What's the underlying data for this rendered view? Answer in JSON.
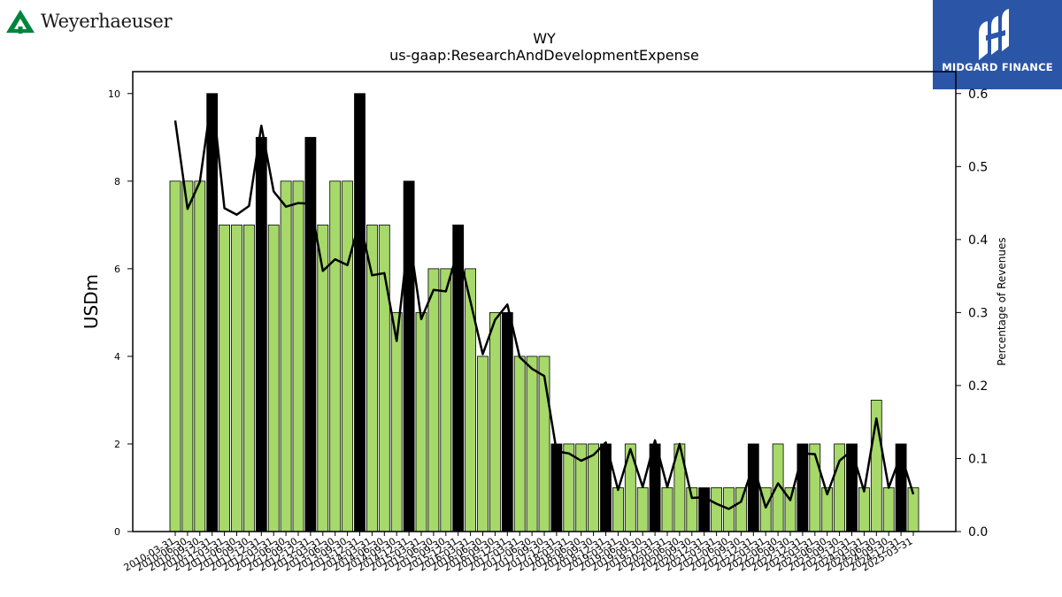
{
  "brand": {
    "company_logo_text": "Weyerhaeuser",
    "publisher_logo_text": "MIDGARD FINANCE"
  },
  "colors": {
    "bar_fill": "#a6d96a",
    "bar_highlight": "#000000",
    "line": "#000000",
    "publisher_bg": "#2b56a8",
    "company_green": "#00843d"
  },
  "chart_data": {
    "type": "bar",
    "title": "WY",
    "subtitle": "us-gaap:ResearchAndDevelopmentExpense",
    "ylabel": "USDm",
    "y2label": "Percentage of Revenues",
    "ylim": [
      0,
      10.5
    ],
    "y2lim": [
      0,
      0.63
    ],
    "yticks": [
      0,
      2,
      4,
      6,
      8,
      10
    ],
    "y2ticks": [
      "0.0",
      "0.1",
      "0.2",
      "0.3",
      "0.4",
      "0.5",
      "0.6"
    ],
    "grid": false,
    "categories": [
      "2010-03-31",
      "2010-06-30",
      "2010-09-30",
      "2010-12-31",
      "2011-03-31",
      "2011-06-30",
      "2011-09-30",
      "2011-12-31",
      "2012-03-31",
      "2012-06-30",
      "2012-09-30",
      "2012-12-31",
      "2013-03-31",
      "2013-06-30",
      "2013-09-30",
      "2013-12-31",
      "2014-03-31",
      "2014-06-30",
      "2014-09-30",
      "2014-12-31",
      "2015-03-31",
      "2015-06-30",
      "2015-09-30",
      "2015-12-31",
      "2016-03-31",
      "2016-06-30",
      "2016-09-30",
      "2016-12-31",
      "2017-03-31",
      "2017-06-30",
      "2017-09-30",
      "2017-12-31",
      "2018-03-31",
      "2018-06-30",
      "2018-09-30",
      "2018-12-31",
      "2019-03-31",
      "2019-06-30",
      "2019-09-30",
      "2019-12-31",
      "2020-03-31",
      "2020-06-30",
      "2020-09-30",
      "2020-12-31",
      "2021-03-31",
      "2021-06-30",
      "2021-09-30",
      "2021-12-31",
      "2022-03-31",
      "2022-06-30",
      "2022-09-30",
      "2022-12-31",
      "2023-03-31",
      "2023-06-30",
      "2023-09-30",
      "2023-12-31",
      "2024-03-31",
      "2024-06-30",
      "2024-09-30",
      "2024-12-31",
      "2025-03-31"
    ],
    "values": [
      8,
      8,
      8,
      10,
      7,
      7,
      7,
      9,
      7,
      8,
      8,
      9,
      7,
      8,
      8,
      10,
      7,
      7,
      5,
      8,
      5,
      6,
      6,
      7,
      6,
      4,
      5,
      5,
      4,
      4,
      4,
      2,
      2,
      2,
      2,
      2,
      1,
      2,
      1,
      2,
      1,
      2,
      1,
      1,
      1,
      1,
      1,
      2,
      1,
      2,
      1,
      2,
      2,
      1,
      2,
      2,
      1,
      3,
      1,
      2,
      1
    ],
    "highlight": [
      false,
      false,
      false,
      true,
      false,
      false,
      false,
      true,
      false,
      false,
      false,
      true,
      false,
      false,
      false,
      true,
      false,
      false,
      false,
      true,
      false,
      false,
      false,
      true,
      false,
      false,
      false,
      true,
      false,
      false,
      false,
      true,
      false,
      false,
      false,
      true,
      false,
      false,
      false,
      true,
      false,
      false,
      false,
      true,
      false,
      false,
      false,
      true,
      false,
      false,
      false,
      true,
      false,
      false,
      false,
      true,
      false,
      false,
      false,
      true,
      false
    ],
    "series": [
      {
        "values_pct": [
          0.563,
          0.442,
          0.479,
          0.599,
          0.443,
          0.434,
          0.446,
          0.556,
          0.466,
          0.445,
          0.45,
          0.449,
          0.357,
          0.373,
          0.365,
          0.426,
          0.351,
          0.354,
          0.261,
          0.409,
          0.291,
          0.331,
          0.329,
          0.386,
          0.315,
          0.243,
          0.29,
          0.311,
          0.239,
          0.223,
          0.213,
          0.11,
          0.107,
          0.097,
          0.105,
          0.122,
          0.057,
          0.113,
          0.061,
          0.125,
          0.061,
          0.12,
          0.046,
          0.047,
          0.038,
          0.031,
          0.041,
          0.091,
          0.033,
          0.066,
          0.043,
          0.107,
          0.106,
          0.051,
          0.097,
          0.111,
          0.055,
          0.155,
          0.06,
          0.106,
          0.051
        ]
      }
    ]
  }
}
